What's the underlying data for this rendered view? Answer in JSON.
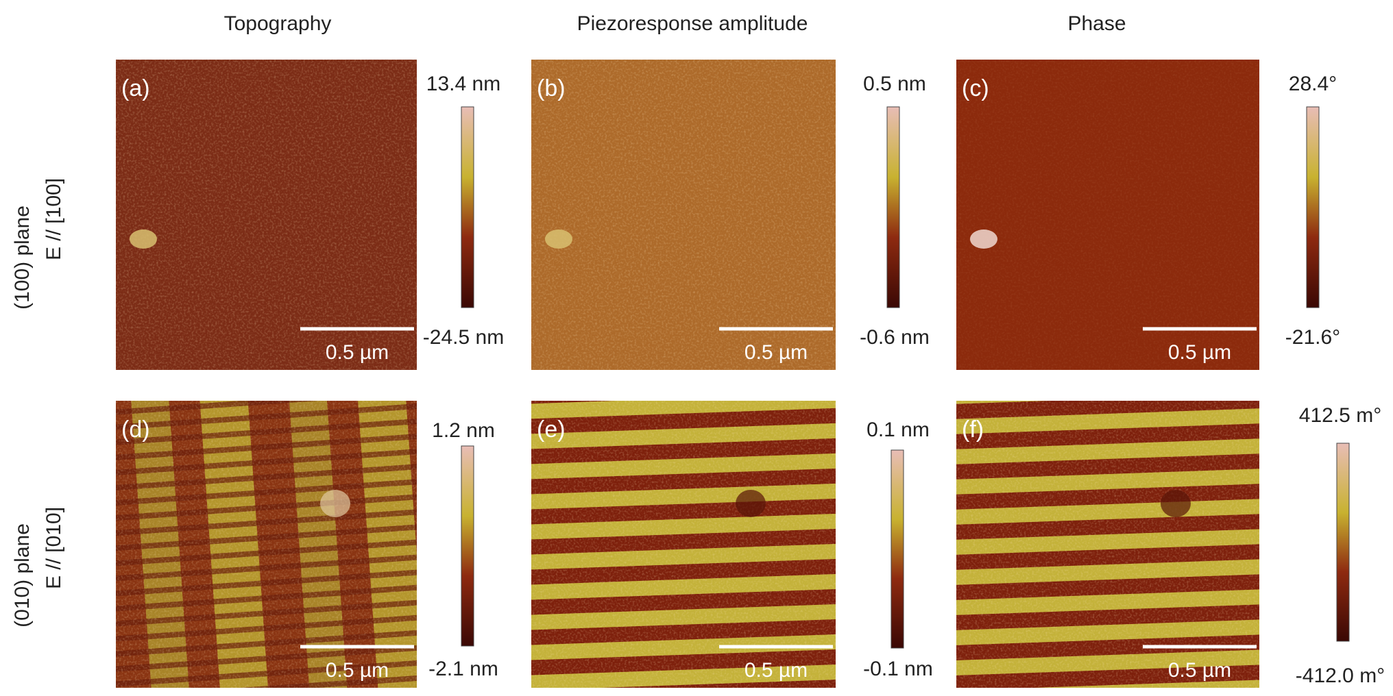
{
  "column_headers": [
    "Topography",
    "Piezoresponse amplitude",
    "Phase"
  ],
  "row_labels": [
    [
      "(100) plane",
      "E // [100]"
    ],
    [
      "(010) plane",
      "E // [010]"
    ]
  ],
  "panels": [
    {
      "label": "(a)",
      "scale_bar": "0.5 µm",
      "colorbar": {
        "max": "13.4 nm",
        "min": "-24.5 nm"
      }
    },
    {
      "label": "(b)",
      "scale_bar": "0.5 µm",
      "colorbar": {
        "max": "0.5 nm",
        "min": "-0.6 nm"
      }
    },
    {
      "label": "(c)",
      "scale_bar": "0.5 µm",
      "colorbar": {
        "max": "28.4°",
        "min": "-21.6°"
      }
    },
    {
      "label": "(d)",
      "scale_bar": "0.5 µm",
      "colorbar": {
        "max": "1.2 nm",
        "min": "-2.1 nm"
      }
    },
    {
      "label": "(e)",
      "scale_bar": "0.5 µm",
      "colorbar": {
        "max": "0.1 nm",
        "min": "-0.1 nm"
      }
    },
    {
      "label": "(f)",
      "scale_bar": "0.5 µm",
      "colorbar": {
        "max": "412.5 m°",
        "min": "-412.0 m°"
      }
    }
  ]
}
